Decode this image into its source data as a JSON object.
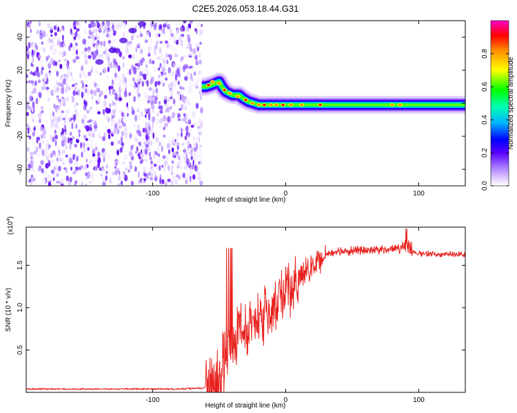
{
  "title": "C2E5.2026.053.18.44.G31",
  "chart_data": [
    {
      "type": "heatmap",
      "name": "spectrogram",
      "xlabel": "Height of straight line (km)",
      "ylabel": "Frequency (Hz)",
      "xlim": [
        -195,
        135
      ],
      "ylim": [
        -50,
        50
      ],
      "xticks": [
        -100,
        0,
        100
      ],
      "yticks": [
        -40,
        -20,
        0,
        20,
        40
      ],
      "noise_region_km": [
        -195,
        -63
      ],
      "signal_track": [
        {
          "x": -63,
          "y": 10
        },
        {
          "x": -60,
          "y": 10
        },
        {
          "x": -56,
          "y": 11
        },
        {
          "x": -53,
          "y": 12
        },
        {
          "x": -50,
          "y": 13
        },
        {
          "x": -48,
          "y": 10
        },
        {
          "x": -45,
          "y": 7
        },
        {
          "x": -40,
          "y": 5
        },
        {
          "x": -35,
          "y": 5
        },
        {
          "x": -32,
          "y": 3
        },
        {
          "x": -28,
          "y": 1
        },
        {
          "x": -24,
          "y": 0
        },
        {
          "x": -20,
          "y": -1
        },
        {
          "x": -15,
          "y": -1
        },
        {
          "x": -10,
          "y": -1
        },
        {
          "x": -5,
          "y": -1
        },
        {
          "x": 0,
          "y": -1
        },
        {
          "x": 10,
          "y": -1
        },
        {
          "x": 30,
          "y": -1
        },
        {
          "x": 50,
          "y": -1
        },
        {
          "x": 70,
          "y": -1
        },
        {
          "x": 90,
          "y": -1
        },
        {
          "x": 110,
          "y": -1
        },
        {
          "x": 135,
          "y": -1
        }
      ],
      "colorbar": {
        "label": "Normalized spectral amplitude",
        "range": [
          0,
          1
        ],
        "ticks": [
          "0.0",
          "0.2",
          "0.4",
          "0.6",
          "0.8"
        ],
        "tick_values": [
          0.0,
          0.2,
          0.4,
          0.6,
          0.8
        ],
        "colors": [
          "#ffffff",
          "#c9a6ff",
          "#6a00ff",
          "#0000ff",
          "#00c8ff",
          "#00ff00",
          "#ffff00",
          "#ff8c00",
          "#ff0000",
          "#ff00c8"
        ]
      }
    },
    {
      "type": "line",
      "name": "snr",
      "xlabel": "Height of straight line (km)",
      "ylabel": "SNR (10 * v/v)",
      "y_scale_label": "(x10",
      "y_scale_exponent": "4",
      "xlim": [
        -195,
        135
      ],
      "ylim": [
        0,
        1.95
      ],
      "xticks": [
        -100,
        0,
        100
      ],
      "yticks": [
        0.5,
        1.0,
        1.5
      ],
      "ytick_labels": [
        "0.5",
        "1.0",
        "1.5"
      ],
      "color": "#e8211d",
      "profile": [
        {
          "x": -195,
          "y": 0.04
        },
        {
          "x": -80,
          "y": 0.04
        },
        {
          "x": -63,
          "y": 0.05
        },
        {
          "x": -55,
          "y": 0.1
        },
        {
          "x": -48,
          "y": 0.2
        },
        {
          "x": -42,
          "y": 0.5
        },
        {
          "x": -38,
          "y": 0.7
        },
        {
          "x": -30,
          "y": 0.75
        },
        {
          "x": -20,
          "y": 0.85
        },
        {
          "x": -10,
          "y": 1.05
        },
        {
          "x": 0,
          "y": 1.2
        },
        {
          "x": 10,
          "y": 1.35
        },
        {
          "x": 20,
          "y": 1.5
        },
        {
          "x": 30,
          "y": 1.62
        },
        {
          "x": 40,
          "y": 1.66
        },
        {
          "x": 60,
          "y": 1.68
        },
        {
          "x": 80,
          "y": 1.69
        },
        {
          "x": 88,
          "y": 1.72
        },
        {
          "x": 92,
          "y": 1.68
        },
        {
          "x": 100,
          "y": 1.64
        },
        {
          "x": 135,
          "y": 1.63
        }
      ]
    }
  ]
}
